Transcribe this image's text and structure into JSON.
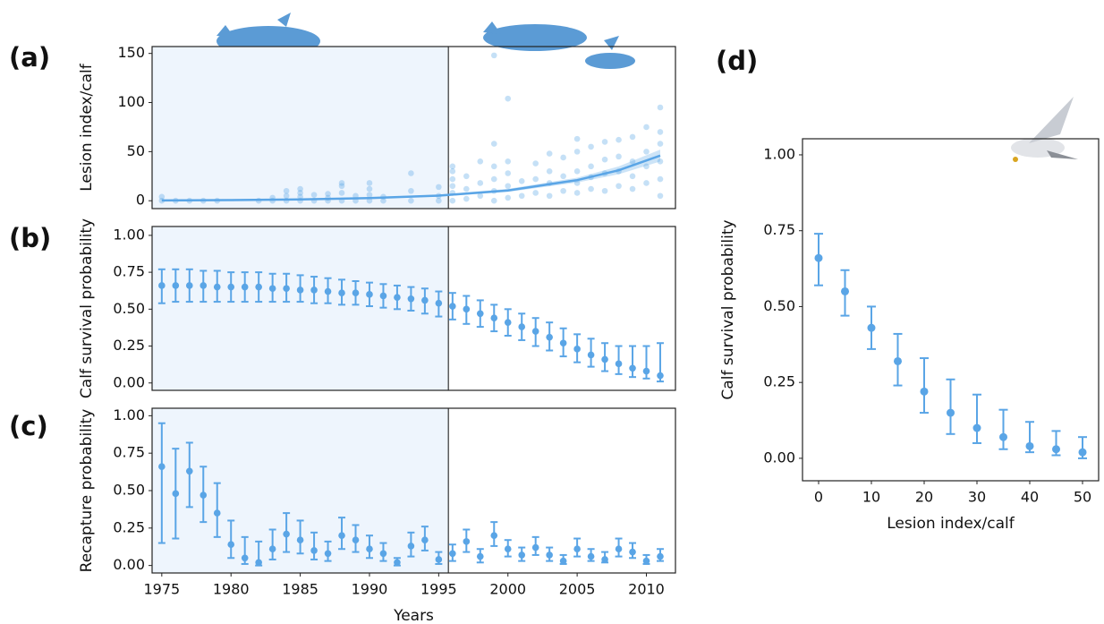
{
  "chart_data": [
    {
      "type": "scatter",
      "panel_label": "(a)",
      "ylabel": "Lesion index/calf",
      "color": "#5aa5e6",
      "xlim": [
        1974.3,
        2012.1
      ],
      "ylim": [
        -8,
        157
      ],
      "yticks": [
        0,
        50,
        100,
        150
      ],
      "divider": 1995.7,
      "x": [
        1975,
        1975,
        1976,
        1977,
        1978,
        1979,
        1982,
        1983,
        1983,
        1984,
        1984,
        1984,
        1985,
        1985,
        1985,
        1985,
        1986,
        1986,
        1987,
        1987,
        1987,
        1988,
        1988,
        1988,
        1988,
        1989,
        1989,
        1990,
        1990,
        1990,
        1990,
        1991,
        1991,
        1993,
        1993,
        1993,
        1995,
        1995,
        1995,
        1996,
        1996,
        1996,
        1996,
        1996,
        1996,
        1997,
        1997,
        1997,
        1998,
        1998,
        1998,
        1999,
        1999,
        1999,
        1999,
        1999,
        1999,
        2000,
        2000,
        2000,
        2000,
        2000,
        2001,
        2001,
        2002,
        2002,
        2002,
        2003,
        2003,
        2003,
        2003,
        2004,
        2004,
        2004,
        2005,
        2005,
        2005,
        2005,
        2005,
        2006,
        2006,
        2006,
        2006,
        2007,
        2007,
        2007,
        2007,
        2008,
        2008,
        2008,
        2008,
        2009,
        2009,
        2009,
        2009,
        2010,
        2010,
        2010,
        2010,
        2011,
        2011,
        2011,
        2011,
        2011,
        2011
      ],
      "y": [
        0,
        4,
        0,
        0,
        0,
        0,
        0,
        0,
        3,
        0,
        5,
        10,
        0,
        4,
        8,
        12,
        0,
        6,
        0,
        3,
        7,
        0,
        8,
        15,
        18,
        0,
        5,
        0,
        6,
        12,
        18,
        0,
        4,
        0,
        10,
        28,
        0,
        5,
        14,
        0,
        8,
        15,
        22,
        30,
        35,
        2,
        12,
        25,
        5,
        18,
        40,
        0,
        10,
        22,
        35,
        58,
        148,
        3,
        15,
        28,
        40,
        104,
        5,
        20,
        8,
        22,
        38,
        5,
        18,
        30,
        48,
        10,
        25,
        44,
        8,
        18,
        30,
        50,
        63,
        12,
        24,
        35,
        55,
        10,
        28,
        42,
        60,
        15,
        30,
        45,
        62,
        12,
        25,
        40,
        65,
        18,
        35,
        50,
        75,
        5,
        22,
        40,
        58,
        70,
        95
      ],
      "fit": {
        "x": [
          1975,
          1980,
          1985,
          1990,
          1995,
          2000,
          2005,
          2008,
          2011
        ],
        "y": [
          0.3,
          0.7,
          1.4,
          2.7,
          5.2,
          10.5,
          21,
          31,
          46
        ],
        "lower": [
          0,
          0.3,
          0.9,
          2,
          4.2,
          9,
          18.5,
          27,
          40
        ],
        "upper": [
          0.8,
          1.2,
          2,
          3.5,
          6.3,
          12,
          23.5,
          35,
          52
        ]
      }
    },
    {
      "type": "errorbar",
      "panel_label": "(b)",
      "ylabel": "Calf survival probability",
      "color": "#5aa5e6",
      "xlim": [
        1974.3,
        2012.1
      ],
      "ylim": [
        -0.05,
        1.06
      ],
      "yticks": [
        {
          "value": 1,
          "label": "1.00"
        },
        0.75,
        {
          "value": 0.5,
          "label": "0.50"
        },
        0.25,
        {
          "value": 0,
          "label": "0.00"
        }
      ],
      "divider": 1995.7,
      "x": [
        1975,
        1976,
        1977,
        1978,
        1979,
        1980,
        1981,
        1982,
        1983,
        1984,
        1985,
        1986,
        1987,
        1988,
        1989,
        1990,
        1991,
        1992,
        1993,
        1994,
        1995,
        1996,
        1997,
        1998,
        1999,
        2000,
        2001,
        2002,
        2003,
        2004,
        2005,
        2006,
        2007,
        2008,
        2009,
        2010,
        2011
      ],
      "values": [
        0.66,
        0.66,
        0.66,
        0.66,
        0.65,
        0.65,
        0.65,
        0.65,
        0.64,
        0.64,
        0.63,
        0.63,
        0.62,
        0.61,
        0.61,
        0.6,
        0.59,
        0.58,
        0.57,
        0.56,
        0.54,
        0.52,
        0.5,
        0.47,
        0.44,
        0.41,
        0.38,
        0.35,
        0.31,
        0.27,
        0.23,
        0.19,
        0.16,
        0.13,
        0.1,
        0.08,
        0.05
      ],
      "lower": [
        0.54,
        0.55,
        0.55,
        0.55,
        0.55,
        0.55,
        0.55,
        0.55,
        0.55,
        0.55,
        0.55,
        0.54,
        0.54,
        0.53,
        0.53,
        0.52,
        0.51,
        0.5,
        0.49,
        0.47,
        0.45,
        0.43,
        0.4,
        0.38,
        0.35,
        0.32,
        0.29,
        0.25,
        0.22,
        0.18,
        0.14,
        0.11,
        0.08,
        0.06,
        0.04,
        0.03,
        0.01
      ],
      "upper": [
        0.77,
        0.77,
        0.77,
        0.76,
        0.76,
        0.75,
        0.75,
        0.75,
        0.74,
        0.74,
        0.73,
        0.72,
        0.71,
        0.7,
        0.69,
        0.68,
        0.67,
        0.66,
        0.65,
        0.64,
        0.62,
        0.61,
        0.59,
        0.56,
        0.53,
        0.5,
        0.47,
        0.44,
        0.41,
        0.37,
        0.33,
        0.3,
        0.27,
        0.25,
        0.25,
        0.25,
        0.27
      ]
    },
    {
      "type": "errorbar",
      "panel_label": "(c)",
      "ylabel": "Recapture probability",
      "xlabel": "Years",
      "color": "#5aa5e6",
      "xlim": [
        1974.3,
        2012.1
      ],
      "ylim": [
        -0.05,
        1.05
      ],
      "xticks": [
        1975,
        1980,
        1985,
        1990,
        1995,
        2000,
        2005,
        2010
      ],
      "yticks": [
        {
          "value": 1,
          "label": "1.00"
        },
        0.75,
        {
          "value": 0.5,
          "label": "0.50"
        },
        0.25,
        {
          "value": 0,
          "label": "0.00"
        }
      ],
      "divider": 1995.7,
      "x": [
        1975,
        1976,
        1977,
        1978,
        1979,
        1980,
        1981,
        1982,
        1983,
        1984,
        1985,
        1986,
        1987,
        1988,
        1989,
        1990,
        1991,
        1992,
        1993,
        1994,
        1995,
        1996,
        1997,
        1998,
        1999,
        2000,
        2001,
        2002,
        2003,
        2004,
        2005,
        2006,
        2007,
        2008,
        2009,
        2010,
        2011
      ],
      "values": [
        0.66,
        0.48,
        0.63,
        0.47,
        0.35,
        0.14,
        0.05,
        0.02,
        0.11,
        0.21,
        0.17,
        0.1,
        0.08,
        0.2,
        0.17,
        0.11,
        0.08,
        0.02,
        0.13,
        0.17,
        0.04,
        0.08,
        0.16,
        0.06,
        0.2,
        0.11,
        0.07,
        0.12,
        0.07,
        0.03,
        0.11,
        0.06,
        0.04,
        0.11,
        0.09,
        0.03,
        0.06
      ],
      "lower": [
        0.15,
        0.18,
        0.39,
        0.29,
        0.19,
        0.05,
        0.01,
        0.0,
        0.04,
        0.09,
        0.08,
        0.04,
        0.03,
        0.11,
        0.09,
        0.05,
        0.03,
        0.0,
        0.06,
        0.1,
        0.01,
        0.03,
        0.09,
        0.02,
        0.13,
        0.06,
        0.03,
        0.07,
        0.03,
        0.01,
        0.06,
        0.03,
        0.02,
        0.06,
        0.05,
        0.01,
        0.03
      ],
      "upper": [
        0.95,
        0.78,
        0.82,
        0.66,
        0.55,
        0.3,
        0.19,
        0.16,
        0.24,
        0.35,
        0.3,
        0.22,
        0.16,
        0.32,
        0.27,
        0.2,
        0.15,
        0.05,
        0.22,
        0.26,
        0.09,
        0.14,
        0.24,
        0.11,
        0.29,
        0.17,
        0.12,
        0.19,
        0.12,
        0.07,
        0.18,
        0.11,
        0.09,
        0.18,
        0.15,
        0.07,
        0.11
      ]
    },
    {
      "type": "errorbar",
      "panel_label": "(d)",
      "ylabel": "Calf survival probability",
      "xlabel": "Lesion index/calf",
      "color": "#5aa5e6",
      "xlim": [
        -3.05,
        53.05
      ],
      "ylim": [
        -0.074,
        1.053
      ],
      "xticks": [
        0,
        10,
        20,
        30,
        40,
        50
      ],
      "yticks": [
        {
          "value": 1,
          "label": "1.00"
        },
        0.75,
        {
          "value": 0.5,
          "label": "0.50"
        },
        0.25,
        {
          "value": 0,
          "label": "0.00"
        }
      ],
      "x": [
        0,
        5,
        10,
        15,
        20,
        25,
        30,
        35,
        40,
        45,
        50
      ],
      "values": [
        0.66,
        0.55,
        0.43,
        0.32,
        0.22,
        0.15,
        0.1,
        0.07,
        0.04,
        0.03,
        0.02
      ],
      "lower": [
        0.57,
        0.47,
        0.36,
        0.24,
        0.15,
        0.08,
        0.05,
        0.03,
        0.02,
        0.01,
        0.0
      ],
      "upper": [
        0.74,
        0.62,
        0.5,
        0.41,
        0.33,
        0.26,
        0.21,
        0.16,
        0.12,
        0.09,
        0.07
      ]
    }
  ]
}
